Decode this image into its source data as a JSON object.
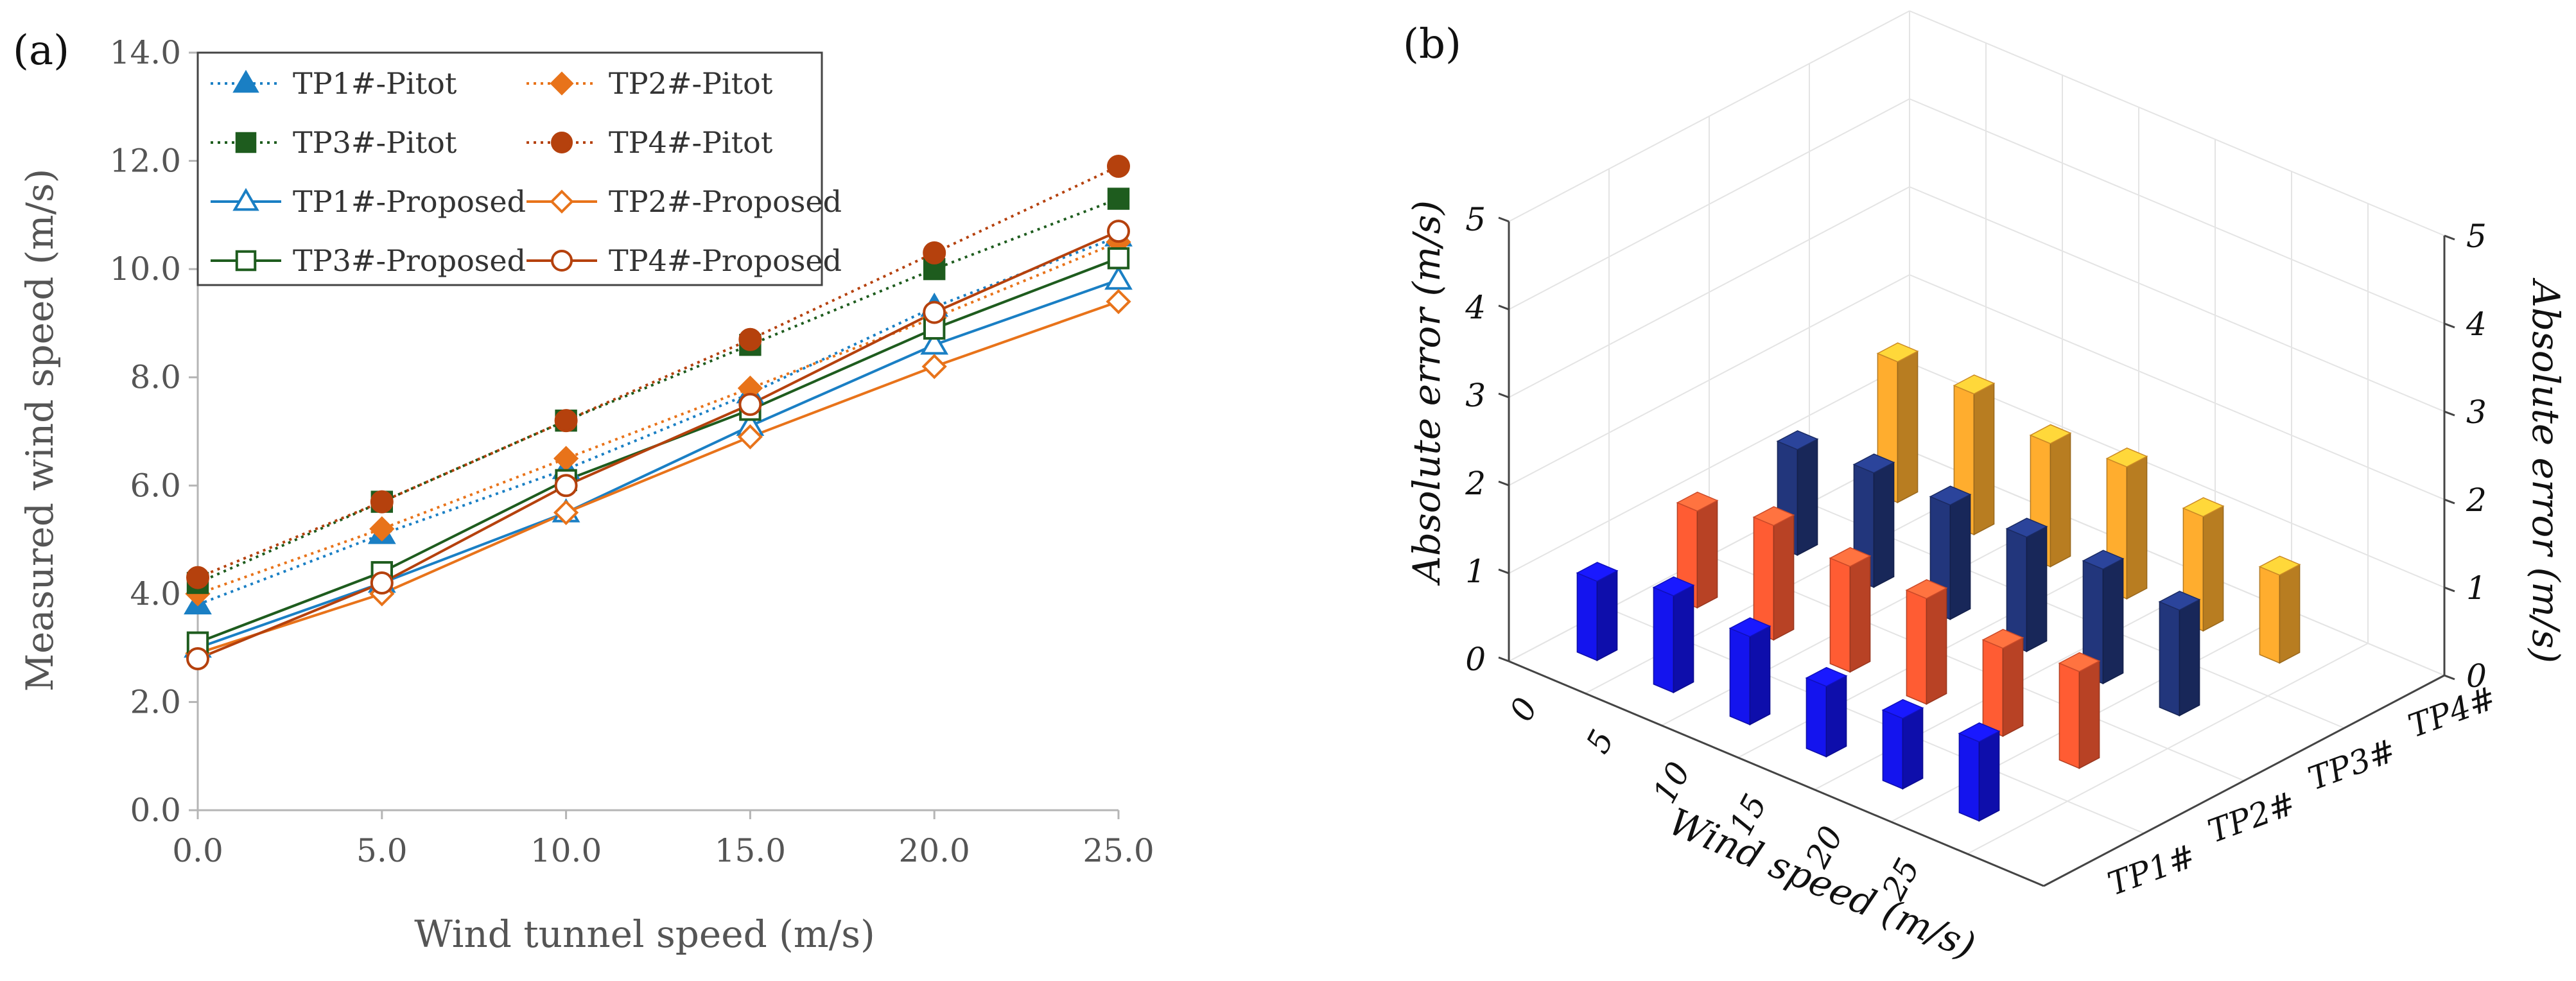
{
  "chart_data": [
    {
      "panel_label": "(a)",
      "type": "line",
      "xlabel": "Wind tunnel speed (m/s)",
      "ylabel": "Measured wind speed (m/s)",
      "x": [
        0,
        5,
        10,
        15,
        20,
        25
      ],
      "xlim": [
        0,
        25
      ],
      "ylim": [
        0,
        14
      ],
      "xticks": [
        "0.0",
        "5.0",
        "10.0",
        "15.0",
        "20.0",
        "25.0"
      ],
      "yticks": [
        "0.0",
        "2.0",
        "4.0",
        "6.0",
        "8.0",
        "10.0",
        "12.0",
        "14.0"
      ],
      "legend_position": "top-left",
      "series": [
        {
          "name": "TP1#-Pitot",
          "color": "#1a7fc4",
          "style": "dotted",
          "marker": "triangle",
          "filled": true,
          "values": [
            3.8,
            5.1,
            6.3,
            7.7,
            9.3,
            10.6
          ]
        },
        {
          "name": "TP2#-Pitot",
          "color": "#e8731a",
          "style": "dotted",
          "marker": "diamond",
          "filled": true,
          "values": [
            4.0,
            5.2,
            6.5,
            7.8,
            9.1,
            10.5
          ]
        },
        {
          "name": "TP3#-Pitot",
          "color": "#1e5c1e",
          "style": "dotted",
          "marker": "square",
          "filled": true,
          "values": [
            4.2,
            5.7,
            7.2,
            8.6,
            10.0,
            11.3
          ]
        },
        {
          "name": "TP4#-Pitot",
          "color": "#b5410d",
          "style": "dotted",
          "marker": "circle",
          "filled": true,
          "values": [
            4.3,
            5.7,
            7.2,
            8.7,
            10.3,
            11.9
          ]
        },
        {
          "name": "TP1#-Proposed",
          "color": "#1a7fc4",
          "style": "solid",
          "marker": "triangle",
          "filled": false,
          "values": [
            3.0,
            4.2,
            5.5,
            7.1,
            8.6,
            9.8
          ]
        },
        {
          "name": "TP2#-Proposed",
          "color": "#e8731a",
          "style": "solid",
          "marker": "diamond",
          "filled": false,
          "values": [
            2.9,
            4.0,
            5.5,
            6.9,
            8.2,
            9.4
          ]
        },
        {
          "name": "TP3#-Proposed",
          "color": "#1e5c1e",
          "style": "solid",
          "marker": "square",
          "filled": false,
          "values": [
            3.1,
            4.4,
            6.1,
            7.4,
            8.9,
            10.2
          ]
        },
        {
          "name": "TP4#-Proposed",
          "color": "#b5410d",
          "style": "solid",
          "marker": "circle",
          "filled": false,
          "values": [
            2.8,
            4.2,
            6.0,
            7.5,
            9.2,
            10.7
          ]
        }
      ]
    },
    {
      "panel_label": "(b)",
      "type": "bar",
      "subtype": "3d-bar",
      "xlabel": "Wind speed (m/s)",
      "ylabel": "Absolute error (m/s)",
      "zlim": [
        0,
        5
      ],
      "zticks": [
        "0",
        "1",
        "2",
        "3",
        "4",
        "5"
      ],
      "categories": [
        "0",
        "5",
        "10",
        "15",
        "20",
        "25"
      ],
      "series": [
        {
          "name": "TP1#",
          "color": "#1414ee",
          "values": [
            0.9,
            1.1,
            1.0,
            0.8,
            0.8,
            0.9
          ]
        },
        {
          "name": "TP2#",
          "color": "#ff5c33",
          "values": [
            1.1,
            1.3,
            1.2,
            1.2,
            1.0,
            1.1
          ]
        },
        {
          "name": "TP3#",
          "color": "#22367c",
          "values": [
            1.2,
            1.3,
            1.3,
            1.3,
            1.3,
            1.2
          ]
        },
        {
          "name": "TP4#",
          "color": "#ffad2e",
          "values": [
            1.6,
            1.6,
            1.4,
            1.5,
            1.3,
            1.0
          ]
        }
      ]
    }
  ]
}
